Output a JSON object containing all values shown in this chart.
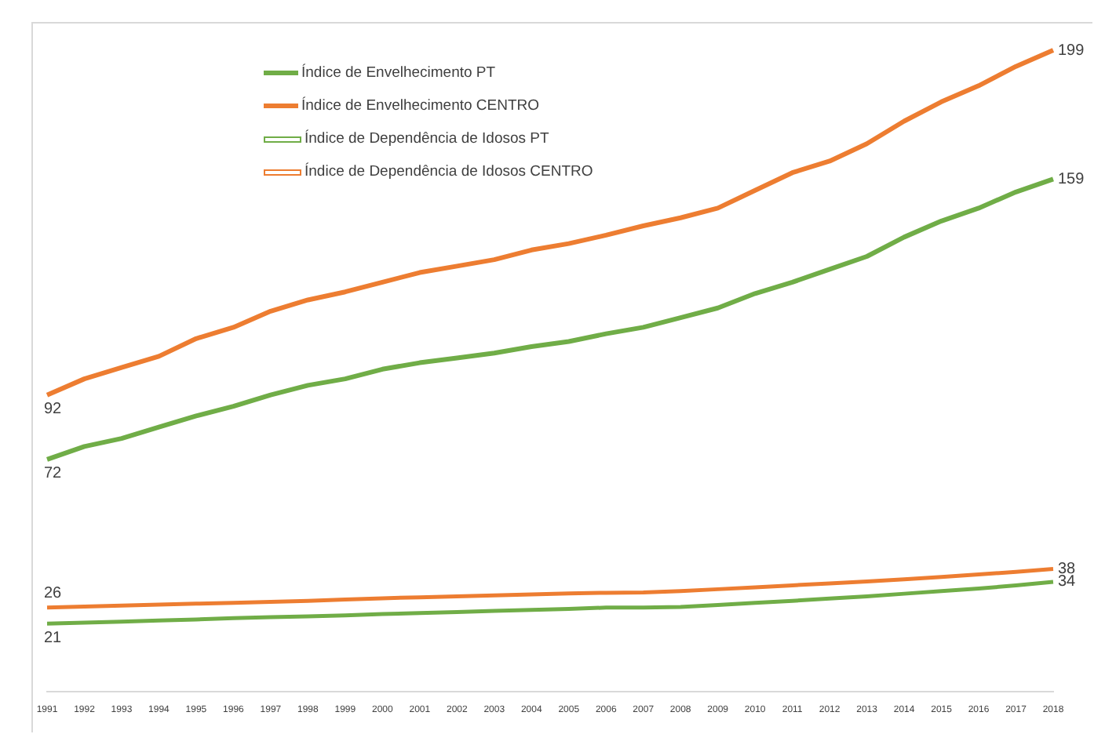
{
  "chart_data": {
    "type": "line",
    "categories": [
      "1991",
      "1992",
      "1993",
      "1994",
      "1995",
      "1996",
      "1997",
      "1998",
      "1999",
      "2000",
      "2001",
      "2002",
      "2003",
      "2004",
      "2005",
      "2006",
      "2007",
      "2008",
      "2009",
      "2010",
      "2011",
      "2012",
      "2013",
      "2014",
      "2015",
      "2016",
      "2017",
      "2018"
    ],
    "tick_labels": "x",
    "grid": false,
    "legend": "top left",
    "marker": "none",
    "line_style": "solid",
    "series": [
      {
        "name": "Índice de Envelhecimento PT",
        "color": "#70ad47",
        "values": [
          72,
          76,
          78.5,
          82,
          85.5,
          88.5,
          92,
          95,
          97,
          100,
          102,
          103.5,
          105,
          107,
          108.6,
          111,
          113,
          116,
          119,
          123.5,
          127,
          131,
          135,
          141,
          146,
          150,
          155,
          159
        ],
        "value_labels": [
          "72",
          null,
          null,
          null,
          null,
          null,
          null,
          null,
          null,
          null,
          null,
          null,
          null,
          null,
          null,
          null,
          null,
          null,
          null,
          null,
          null,
          null,
          null,
          null,
          null,
          null,
          null,
          "159"
        ]
      },
      {
        "name": "Índice de Envelhecimento CENTRO",
        "color": "#ed7d31",
        "values": [
          92,
          97,
          100.5,
          104,
          109.5,
          113,
          118,
          121.5,
          124,
          127,
          130,
          132,
          134,
          137,
          139,
          141.6,
          144.5,
          147,
          150,
          155.5,
          161,
          164.6,
          170,
          177,
          183,
          188,
          194,
          199
        ],
        "value_labels": [
          "92",
          null,
          null,
          null,
          null,
          null,
          null,
          null,
          null,
          null,
          null,
          null,
          null,
          null,
          null,
          null,
          null,
          null,
          null,
          null,
          null,
          null,
          null,
          null,
          null,
          null,
          null,
          "199"
        ]
      },
      {
        "name": "Índice de Dependência de Idosos PT",
        "color": "#70ad47",
        "values": [
          21,
          21.3,
          21.6,
          22,
          22.3,
          22.7,
          23,
          23.3,
          23.6,
          24,
          24.3,
          24.6,
          25,
          25.3,
          25.6,
          26,
          26,
          26.2,
          26.8,
          27.5,
          28.1,
          28.8,
          29.5,
          30.3,
          31.1,
          31.9,
          32.9,
          34
        ],
        "value_labels": [
          "21",
          null,
          null,
          null,
          null,
          null,
          null,
          null,
          null,
          null,
          null,
          null,
          null,
          null,
          null,
          null,
          null,
          null,
          null,
          null,
          null,
          null,
          null,
          null,
          null,
          null,
          null,
          "34"
        ]
      },
      {
        "name": "Índice de Dependência de Idosos CENTRO",
        "color": "#ed7d31",
        "values": [
          26,
          26.3,
          26.6,
          26.9,
          27.2,
          27.5,
          27.8,
          28.1,
          28.5,
          28.9,
          29.2,
          29.5,
          29.8,
          30.1,
          30.4,
          30.6,
          30.7,
          31.1,
          31.7,
          32.3,
          32.9,
          33.5,
          34.1,
          34.8,
          35.5,
          36.3,
          37.1,
          38
        ],
        "value_labels": [
          "26",
          null,
          null,
          null,
          null,
          null,
          null,
          null,
          null,
          null,
          null,
          null,
          null,
          null,
          null,
          null,
          null,
          null,
          null,
          null,
          null,
          null,
          null,
          null,
          null,
          null,
          null,
          "38"
        ]
      }
    ]
  }
}
